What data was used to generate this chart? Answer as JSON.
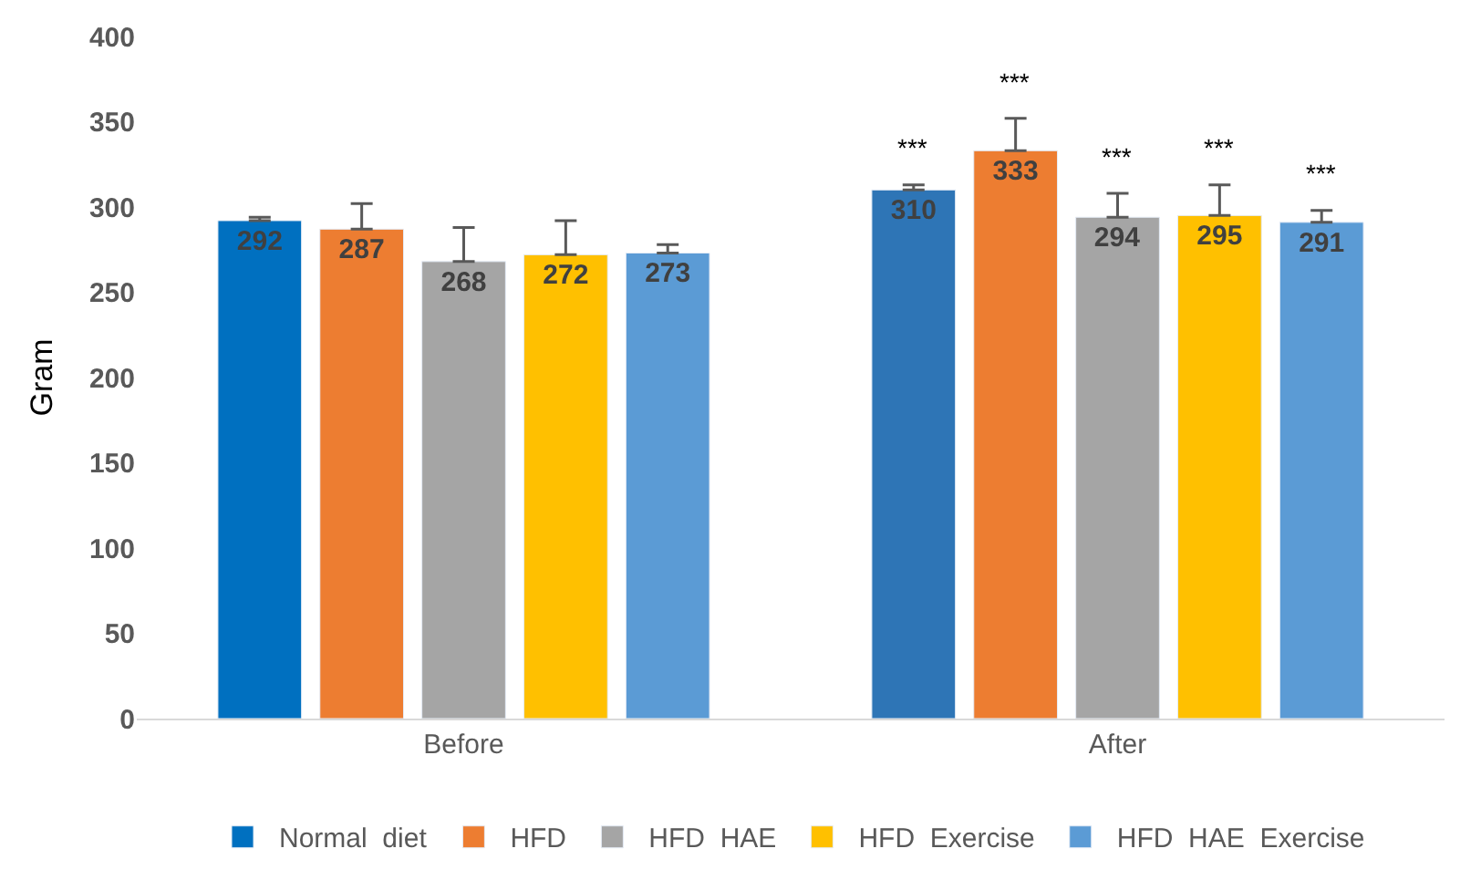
{
  "chart_data": {
    "type": "bar",
    "ylabel": "Gram",
    "categories": [
      "Before",
      "After"
    ],
    "series": [
      {
        "name": "Normal  diet",
        "colors": [
          "#0070c0",
          "#2e75b6"
        ],
        "values": [
          292,
          310
        ],
        "errors": [
          [
            292,
            294
          ],
          [
            310,
            313
          ]
        ]
      },
      {
        "name": "HFD",
        "color": "#ed7d31",
        "values": [
          287,
          333
        ],
        "errors": [
          [
            287,
            302
          ],
          [
            333,
            352
          ]
        ]
      },
      {
        "name": "HFD  HAE",
        "color": "#a5a5a5",
        "values": [
          268,
          294
        ],
        "errors": [
          [
            268,
            288
          ],
          [
            294,
            308
          ]
        ]
      },
      {
        "name": "HFD  Exercise",
        "color": "#ffc000",
        "values": [
          272,
          295
        ],
        "errors": [
          [
            272,
            292
          ],
          [
            295,
            313
          ]
        ]
      },
      {
        "name": "HFD  HAE  Exercise",
        "color": "#5b9bd5",
        "values": [
          273,
          291
        ],
        "errors": [
          [
            273,
            278
          ],
          [
            291,
            298
          ]
        ]
      }
    ],
    "annotations": [
      "***",
      "***",
      "***",
      "***",
      "***"
    ],
    "ylim": [
      0,
      400
    ],
    "yticks": [
      0,
      50,
      100,
      150,
      200,
      250,
      300,
      350,
      400
    ],
    "data_labels": true,
    "legend": "bottom"
  }
}
